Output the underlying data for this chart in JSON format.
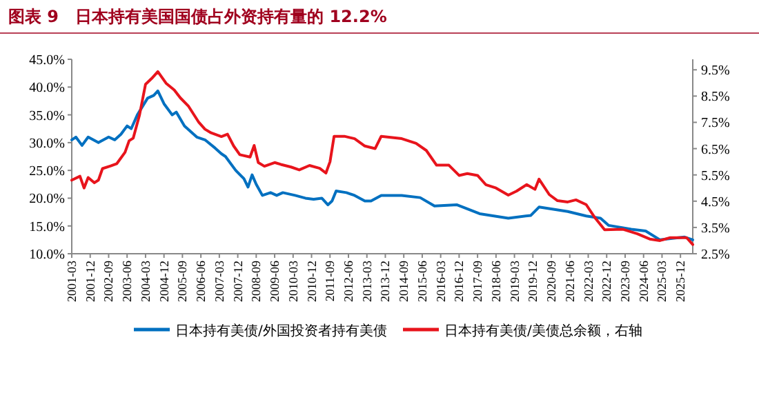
{
  "chart_data": {
    "type": "line",
    "title": "图表 9　日本持有美国国债占外资持有量的 12.2%",
    "xlim": [
      "2001-03",
      "2026-06"
    ],
    "xticks": [
      "2001-03",
      "2001-12",
      "2002-09",
      "2003-06",
      "2004-03",
      "2004-12",
      "2005-09",
      "2006-06",
      "2007-03",
      "2007-12",
      "2008-09",
      "2009-06",
      "2010-03",
      "2010-12",
      "2011-09",
      "2012-06",
      "2013-03",
      "2013-12",
      "2014-09",
      "2015-06",
      "2016-03",
      "2016-12",
      "2017-09",
      "2018-06",
      "2019-03",
      "2019-12",
      "2020-09",
      "2021-06",
      "2022-03",
      "2022-12",
      "2023-09",
      "2024-06",
      "2025-03",
      "2025-12"
    ],
    "ylim": [
      10,
      45
    ],
    "yticks": [
      {
        "value": 10,
        "label": "10.0%"
      },
      {
        "value": 15,
        "label": "15.0%"
      },
      {
        "value": 20,
        "label": "20.0%"
      },
      {
        "value": 25,
        "label": "25.0%"
      },
      {
        "value": 30,
        "label": "30.0%"
      },
      {
        "value": 35,
        "label": "35.0%"
      },
      {
        "value": 40,
        "label": "40.0%"
      },
      {
        "value": 45,
        "label": "45.0%"
      }
    ],
    "y2lim": [
      2.5,
      9.9
    ],
    "y2ticks": [
      {
        "value": 2.5,
        "label": "2.5%"
      },
      {
        "value": 3.5,
        "label": "3.5%"
      },
      {
        "value": 4.5,
        "label": "4.5%"
      },
      {
        "value": 5.5,
        "label": "5.5%"
      },
      {
        "value": 6.5,
        "label": "6.5%"
      },
      {
        "value": 7.5,
        "label": "7.5%"
      },
      {
        "value": 8.5,
        "label": "8.5%"
      },
      {
        "value": 9.5,
        "label": "9.5%"
      }
    ],
    "legend": "bottom",
    "grid": false,
    "series": [
      {
        "name": "日本持有美债/外国投资者持有美债",
        "color": "#0070c0",
        "axis": "y",
        "x": [
          "2001-03",
          "2001-05",
          "2001-08",
          "2001-11",
          "2002-04",
          "2002-09",
          "2002-12",
          "2003-03",
          "2003-06",
          "2003-08",
          "2003-11",
          "2004-04",
          "2004-07",
          "2004-09",
          "2004-12",
          "2005-04",
          "2005-06",
          "2005-10",
          "2006-04",
          "2006-08",
          "2007-01",
          "2007-04",
          "2007-06",
          "2007-11",
          "2008-03",
          "2008-05",
          "2008-07",
          "2008-09",
          "2008-12",
          "2009-04",
          "2009-07",
          "2009-10",
          "2010-04",
          "2010-09",
          "2011-01",
          "2011-05",
          "2011-08",
          "2011-10",
          "2011-12",
          "2012-05",
          "2012-09",
          "2013-02",
          "2013-05",
          "2013-10",
          "2013-12",
          "2014-08",
          "2015-05",
          "2015-12",
          "2016-11",
          "2017-10",
          "2018-12",
          "2019-11",
          "2020-03",
          "2021-05",
          "2022-02",
          "2022-09",
          "2023-01",
          "2023-12",
          "2024-07",
          "2025-02",
          "2026-02",
          "2026-06"
        ],
        "values": [
          30.5,
          31,
          29.5,
          31,
          30,
          31,
          30.5,
          31.5,
          33,
          32.5,
          35,
          38,
          38.5,
          39.3,
          37,
          35,
          35.5,
          33,
          31,
          30.5,
          29,
          28,
          27.5,
          25,
          23.5,
          22,
          24.2,
          22.5,
          20.5,
          21,
          20.5,
          21,
          20.5,
          20,
          19.8,
          20,
          18.8,
          19.5,
          21.3,
          21,
          20.5,
          19.5,
          19.5,
          20.5,
          20.5,
          20.5,
          20.1,
          18.6,
          18.8,
          17.2,
          16.4,
          16.9,
          18.4,
          17.6,
          16.8,
          16.4,
          15.1,
          14.4,
          14.1,
          12.5,
          13,
          12.5
        ]
      },
      {
        "name": "日本持有美债/美债总余额，右轴",
        "color": "#e8141c",
        "axis": "y2",
        "x": [
          "2001-03",
          "2001-07",
          "2001-09",
          "2001-11",
          "2002-02",
          "2002-04",
          "2002-06",
          "2002-10",
          "2003-01",
          "2003-05",
          "2003-07",
          "2003-09",
          "2003-12",
          "2004-03",
          "2004-06",
          "2004-09",
          "2005-01",
          "2005-05",
          "2005-08",
          "2005-12",
          "2006-05",
          "2006-08",
          "2006-11",
          "2007-04",
          "2007-07",
          "2007-10",
          "2008-01",
          "2008-06",
          "2008-08",
          "2008-10",
          "2009-01",
          "2009-06",
          "2009-09",
          "2010-02",
          "2010-06",
          "2010-11",
          "2011-04",
          "2011-07",
          "2011-09",
          "2011-11",
          "2012-04",
          "2012-09",
          "2013-02",
          "2013-07",
          "2013-10",
          "2014-08",
          "2015-03",
          "2015-08",
          "2016-01",
          "2016-07",
          "2016-12",
          "2017-04",
          "2017-09",
          "2018-01",
          "2018-06",
          "2018-12",
          "2019-04",
          "2019-09",
          "2020-01",
          "2020-03",
          "2020-08",
          "2020-12",
          "2021-05",
          "2021-09",
          "2022-02",
          "2022-06",
          "2022-11",
          "2023-08",
          "2024-03",
          "2024-09",
          "2025-02",
          "2025-07",
          "2026-03",
          "2026-06"
        ],
        "values": [
          5.3,
          5.45,
          5.0,
          5.4,
          5.2,
          5.3,
          5.74,
          5.84,
          5.93,
          6.36,
          6.8,
          6.9,
          7.76,
          8.95,
          9.17,
          9.43,
          8.99,
          8.73,
          8.43,
          8.11,
          7.5,
          7.24,
          7.1,
          6.96,
          7.05,
          6.6,
          6.27,
          6.18,
          6.62,
          5.97,
          5.83,
          5.97,
          5.9,
          5.8,
          5.69,
          5.86,
          5.75,
          5.57,
          6.0,
          6.97,
          6.97,
          6.88,
          6.6,
          6.5,
          6.97,
          6.88,
          6.7,
          6.43,
          5.87,
          5.87,
          5.48,
          5.55,
          5.48,
          5.13,
          5.0,
          4.73,
          4.88,
          5.13,
          4.95,
          5.34,
          4.75,
          4.52,
          4.47,
          4.55,
          4.37,
          3.9,
          3.41,
          3.43,
          3.26,
          3.06,
          3.0,
          3.11,
          3.11,
          2.85
        ]
      }
    ]
  }
}
